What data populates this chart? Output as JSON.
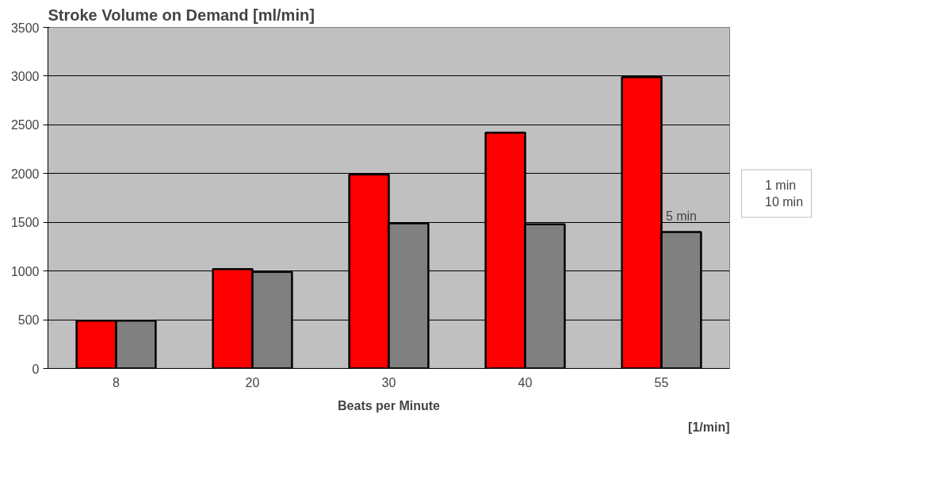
{
  "chart_data": {
    "type": "bar",
    "title": "Stroke Volume on Demand [ml/min]",
    "xlabel": "Beats per Minute",
    "categories": [
      "8",
      "20",
      "30",
      "40",
      "55"
    ],
    "series": [
      {
        "name": "1 min",
        "color": "#ff0000",
        "values": [
          490,
          1020,
          1990,
          2420,
          2990
        ]
      },
      {
        "name": "10 min",
        "color": "#808080",
        "values": [
          490,
          990,
          1490,
          1480,
          1400
        ]
      }
    ],
    "ylim": [
      0,
      3500
    ],
    "yticks": [
      0,
      500,
      1000,
      1500,
      2000,
      2500,
      3000,
      3500
    ],
    "grid": "y",
    "legend": "right",
    "annotations": [
      {
        "text": "5 min",
        "x": "55",
        "y": 1400
      },
      "[1/min]"
    ]
  }
}
